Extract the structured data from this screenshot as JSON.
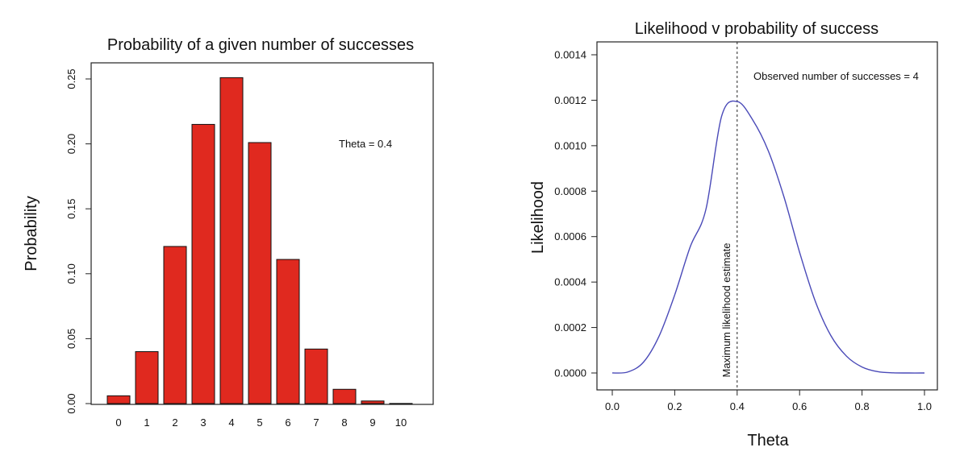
{
  "chart_data": [
    {
      "type": "bar",
      "title": "Probability of a given number of successes",
      "xlabel": "",
      "ylabel": "Probability",
      "categories": [
        "0",
        "1",
        "2",
        "3",
        "4",
        "5",
        "6",
        "7",
        "8",
        "9",
        "10"
      ],
      "values": [
        0.006,
        0.04,
        0.121,
        0.215,
        0.251,
        0.201,
        0.111,
        0.042,
        0.011,
        0.002,
        0.0001
      ],
      "ylim": [
        0,
        0.25
      ],
      "yticks": [
        "0.00",
        "0.05",
        "0.10",
        "0.15",
        "0.20",
        "0.25"
      ],
      "annotations": [
        {
          "text": "Theta = 0.4"
        }
      ],
      "bar_color": "#e0291f",
      "grid": false
    },
    {
      "type": "line",
      "title": "Likelihood v probability of success",
      "xlabel": "Theta",
      "ylabel": "Likelihood",
      "x": [
        0.0,
        0.05,
        0.1,
        0.15,
        0.2,
        0.25,
        0.3,
        0.35,
        0.4,
        0.45,
        0.5,
        0.55,
        0.6,
        0.65,
        0.7,
        0.75,
        0.8,
        0.85,
        0.9,
        0.95,
        1.0
      ],
      "y": [
        0.0,
        4.4e-06,
        4.78e-05,
        0.0001624,
        0.0003436,
        0.0005563,
        0.0007203,
        0.0011285,
        0.0011944,
        0.0011131,
        0.0009766,
        0.0007744,
        0.0005308,
        0.0003164,
        0.0001647,
        7.42e-05,
        2.62e-05,
        5.8e-06,
        6e-07,
        0.0,
        0.0
      ],
      "xlim": [
        0.0,
        1.0
      ],
      "ylim": [
        0.0,
        0.0014
      ],
      "xticks": [
        "0.0",
        "0.2",
        "0.4",
        "0.6",
        "0.8",
        "1.0"
      ],
      "yticks": [
        "0.0000",
        "0.0002",
        "0.0004",
        "0.0006",
        "0.0008",
        "0.0010",
        "0.0012",
        "0.0014"
      ],
      "mle_theta": 0.4,
      "annotations": [
        {
          "text": "Observed number of successes = 4"
        },
        {
          "text": "Maximum likelihood estimate"
        }
      ],
      "line_color": "#4a4ab8",
      "grid": false
    }
  ]
}
